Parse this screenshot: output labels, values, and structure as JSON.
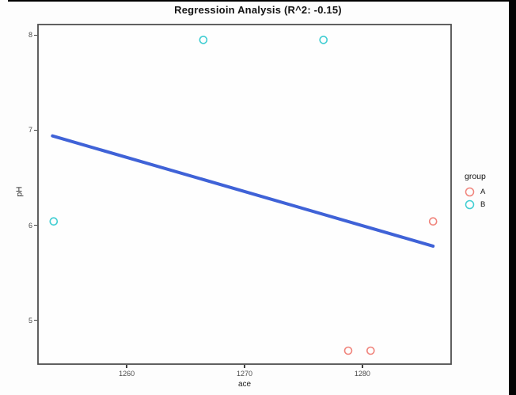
{
  "chart_data": {
    "type": "scatter",
    "title": "Regressioin Analysis (R^2: -0.15)",
    "xlabel": "ace",
    "ylabel": "pH",
    "xlim": [
      1252.4,
      1287.6
    ],
    "ylim": [
      4.53,
      8.12
    ],
    "xticks": [
      1260,
      1270,
      1280
    ],
    "yticks": [
      5,
      6,
      7,
      8
    ],
    "grid": false,
    "panel_background": "#fefefe",
    "panel_border_color": "#4f4f4f",
    "legend": {
      "title": "group",
      "position": "right"
    },
    "series": [
      {
        "name": "A",
        "color": "#f0837b",
        "marker": "open-circle",
        "points": [
          [
            1278.8,
            4.68
          ],
          [
            1280.7,
            4.68
          ],
          [
            1286.0,
            6.04
          ]
        ]
      },
      {
        "name": "B",
        "color": "#3fcdd2",
        "marker": "open-circle",
        "points": [
          [
            1266.5,
            7.95
          ],
          [
            1276.7,
            7.95
          ],
          [
            1253.8,
            6.04
          ]
        ]
      }
    ],
    "regression_line": {
      "color": "#3f62d7",
      "width": 4,
      "from": [
        1253.7,
        6.94
      ],
      "to": [
        1286.0,
        5.78
      ]
    }
  }
}
